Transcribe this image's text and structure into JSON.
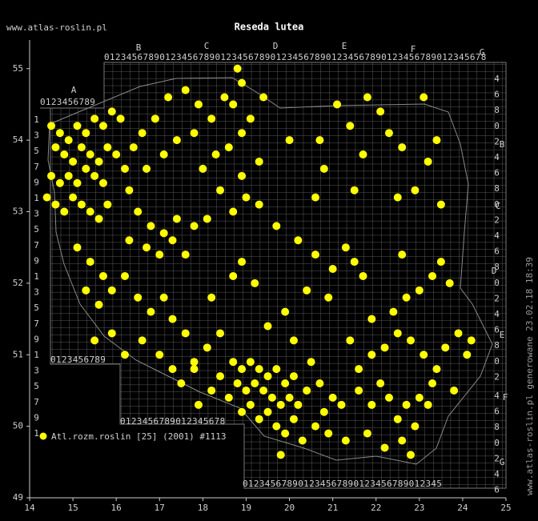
{
  "chart_data": {
    "type": "scatter",
    "title": "Reseda lutea",
    "site": "www.atlas-roslin.pl",
    "side_note": "www.atlas-roslin.pl generowane 23.02.18 18:39",
    "xlim": [
      14,
      25
    ],
    "ylim": [
      49,
      55.4
    ],
    "xticks": [
      14,
      15,
      16,
      17,
      18,
      19,
      20,
      21,
      22,
      23,
      24,
      25
    ],
    "yticks": [
      49,
      50,
      51,
      52,
      53,
      54,
      55
    ],
    "grid_labels": {
      "columns": [
        "A",
        "B",
        "C",
        "D",
        "E",
        "F",
        "G"
      ],
      "rows": [
        "B",
        "C",
        "D",
        "E",
        "F",
        "G"
      ],
      "strips": [
        "0123456789",
        "012345678901234567890123456789012345678901234567890123456789012345678",
        "0123456789",
        "0123456789012345678",
        "012345678901234567890123456789012345"
      ],
      "columns_digits": [
        "135791357913579135791",
        "46802468024680246802",
        "4680246"
      ]
    },
    "series": [
      {
        "name": "Atl.rozm.roslin [25] (2001) #1113",
        "color": "#ffff00",
        "x": [
          14.5,
          14.7,
          14.9,
          15.1,
          15.3,
          15.5,
          15.7,
          15.9,
          16.1,
          14.6,
          14.8,
          15.0,
          15.2,
          15.4,
          15.6,
          15.8,
          16.0,
          16.2,
          14.5,
          14.7,
          14.9,
          15.1,
          15.3,
          15.5,
          15.7,
          16.3,
          14.4,
          14.6,
          14.8,
          15.0,
          15.2,
          15.4,
          15.6,
          15.8,
          16.4,
          16.6,
          16.7,
          17.2,
          17.6,
          17.9,
          18.2,
          18.5,
          18.7,
          18.9,
          18.6,
          18.3,
          17.8,
          17.4,
          17.1,
          16.9,
          18.0,
          18.4,
          18.7,
          19.0,
          19.3,
          18.9,
          19.3,
          19.1,
          18.9,
          18.8,
          19.4,
          20.0,
          20.7,
          21.1,
          21.4,
          21.8,
          22.1,
          22.3,
          22.6,
          23.1,
          23.4,
          23.2,
          21.7,
          20.8,
          20.6,
          21.5,
          22.5,
          22.9,
          23.5,
          16.5,
          16.8,
          17.1,
          17.4,
          17.8,
          18.1,
          16.3,
          16.7,
          17.0,
          17.3,
          17.6,
          15.1,
          15.4,
          15.7,
          15.3,
          15.6,
          15.9,
          16.2,
          16.5,
          16.8,
          17.1,
          17.3,
          17.6,
          15.9,
          15.5,
          16.2,
          16.6,
          17.0,
          17.3,
          17.5,
          17.8,
          18.1,
          18.4,
          18.2,
          18.7,
          18.9,
          19.2,
          19.7,
          20.2,
          20.6,
          21.0,
          21.3,
          21.5,
          21.7,
          20.9,
          20.4,
          19.9,
          19.5,
          20.1,
          18.7,
          18.9,
          19.1,
          19.3,
          19.5,
          19.7,
          19.9,
          20.1,
          18.8,
          19.0,
          19.2,
          19.4,
          19.6,
          19.8,
          20.0,
          20.2,
          20.4,
          18.6,
          18.9,
          19.1,
          19.3,
          19.5,
          19.7,
          19.9,
          20.1,
          20.3,
          20.6,
          20.8,
          21.0,
          21.2,
          20.7,
          20.5,
          21.3,
          20.9,
          18.4,
          18.2,
          17.9,
          17.8,
          19.8,
          21.6,
          21.9,
          22.1,
          22.3,
          22.5,
          22.7,
          22.9,
          22.6,
          22.2,
          21.8,
          21.6,
          21.9,
          22.2,
          22.5,
          22.8,
          23.1,
          23.4,
          23.6,
          23.9,
          24.1,
          23.3,
          23.0,
          22.4,
          22.7,
          23.0,
          23.3,
          23.5,
          23.7,
          22.6,
          21.9,
          21.4,
          23.8,
          22.8,
          23.2,
          24.2
        ],
        "values": [
          54.2,
          54.1,
          54.0,
          54.2,
          54.1,
          54.3,
          54.2,
          54.4,
          54.3,
          53.9,
          53.8,
          53.7,
          53.9,
          53.8,
          53.7,
          53.9,
          53.8,
          53.6,
          53.5,
          53.4,
          53.5,
          53.4,
          53.6,
          53.5,
          53.4,
          53.3,
          53.2,
          53.1,
          53.0,
          53.2,
          53.1,
          53.0,
          52.9,
          53.1,
          53.9,
          54.1,
          53.6,
          54.6,
          54.7,
          54.5,
          54.3,
          54.6,
          54.5,
          54.1,
          53.9,
          53.8,
          54.1,
          54.0,
          53.8,
          54.3,
          53.6,
          53.3,
          53.0,
          53.2,
          53.1,
          53.5,
          53.7,
          54.3,
          54.8,
          55.0,
          54.6,
          54.0,
          54.0,
          54.5,
          54.2,
          54.6,
          54.4,
          54.1,
          53.9,
          54.6,
          54.0,
          53.7,
          53.8,
          53.6,
          53.2,
          53.3,
          53.2,
          53.3,
          53.1,
          53.0,
          52.8,
          52.7,
          52.9,
          52.8,
          52.9,
          52.6,
          52.5,
          52.4,
          52.6,
          52.4,
          52.5,
          52.3,
          52.1,
          51.9,
          51.7,
          51.9,
          52.1,
          51.8,
          51.6,
          51.8,
          51.5,
          51.3,
          51.3,
          51.2,
          51.0,
          51.2,
          51.0,
          50.8,
          50.6,
          50.9,
          51.1,
          51.3,
          51.8,
          52.1,
          52.3,
          52.0,
          52.8,
          52.6,
          52.4,
          52.2,
          52.5,
          52.3,
          52.1,
          51.8,
          51.9,
          51.6,
          51.4,
          51.2,
          50.9,
          50.8,
          50.9,
          50.8,
          50.7,
          50.8,
          50.6,
          50.7,
          50.6,
          50.5,
          50.6,
          50.5,
          50.4,
          50.3,
          50.4,
          50.3,
          50.5,
          50.4,
          50.2,
          50.3,
          50.1,
          50.2,
          50.0,
          49.9,
          50.1,
          49.8,
          50.0,
          50.2,
          50.4,
          50.3,
          50.6,
          50.9,
          49.8,
          49.9,
          50.7,
          50.5,
          50.3,
          50.8,
          49.6,
          50.5,
          50.3,
          50.6,
          50.4,
          50.1,
          50.3,
          50.0,
          49.8,
          49.7,
          49.9,
          50.8,
          51.0,
          51.1,
          51.3,
          51.2,
          51.0,
          50.8,
          51.1,
          51.3,
          51.0,
          50.6,
          50.4,
          51.6,
          51.8,
          51.9,
          52.1,
          52.3,
          52.0,
          52.4,
          51.5,
          51.2,
          50.5,
          49.6,
          50.3,
          51.2
        ]
      }
    ]
  }
}
